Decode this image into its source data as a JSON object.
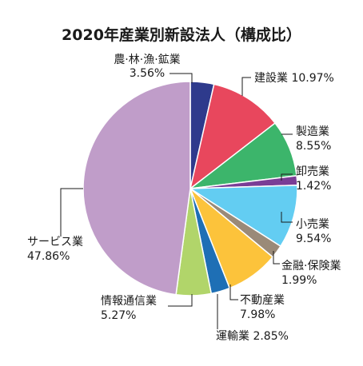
{
  "chart_data": {
    "type": "pie",
    "title": "2020年産業別新設法人（構成比）",
    "unit": "%",
    "start_angle_deg": 0,
    "direction": "clockwise",
    "slices": [
      {
        "name": "農·林·漁·鉱業",
        "value": 3.56,
        "value_label": "3.56%",
        "color": "#2e3a8c"
      },
      {
        "name": "建設業",
        "value": 10.97,
        "value_label": "10.97%",
        "color": "#e8475d"
      },
      {
        "name": "製造業",
        "value": 8.55,
        "value_label": "8.55%",
        "color": "#3cb56b"
      },
      {
        "name": "卸売業",
        "value": 1.42,
        "value_label": "1.42%",
        "color": "#7a3d96"
      },
      {
        "name": "小売業",
        "value": 9.54,
        "value_label": "9.54%",
        "color": "#63cdf2"
      },
      {
        "name": "金融·保険業",
        "value": 1.99,
        "value_label": "1.99%",
        "color": "#9a8a78"
      },
      {
        "name": "不動産業",
        "value": 7.98,
        "value_label": "7.98%",
        "color": "#fcc33b"
      },
      {
        "name": "運輸業",
        "value": 2.85,
        "value_label": "2.85%",
        "color": "#1e6fb5"
      },
      {
        "name": "情報通信業",
        "value": 5.27,
        "value_label": "5.27%",
        "color": "#b1d56a"
      },
      {
        "name": "サービス業",
        "value": 47.86,
        "value_label": "47.86%",
        "color": "#c09dc9"
      }
    ]
  }
}
